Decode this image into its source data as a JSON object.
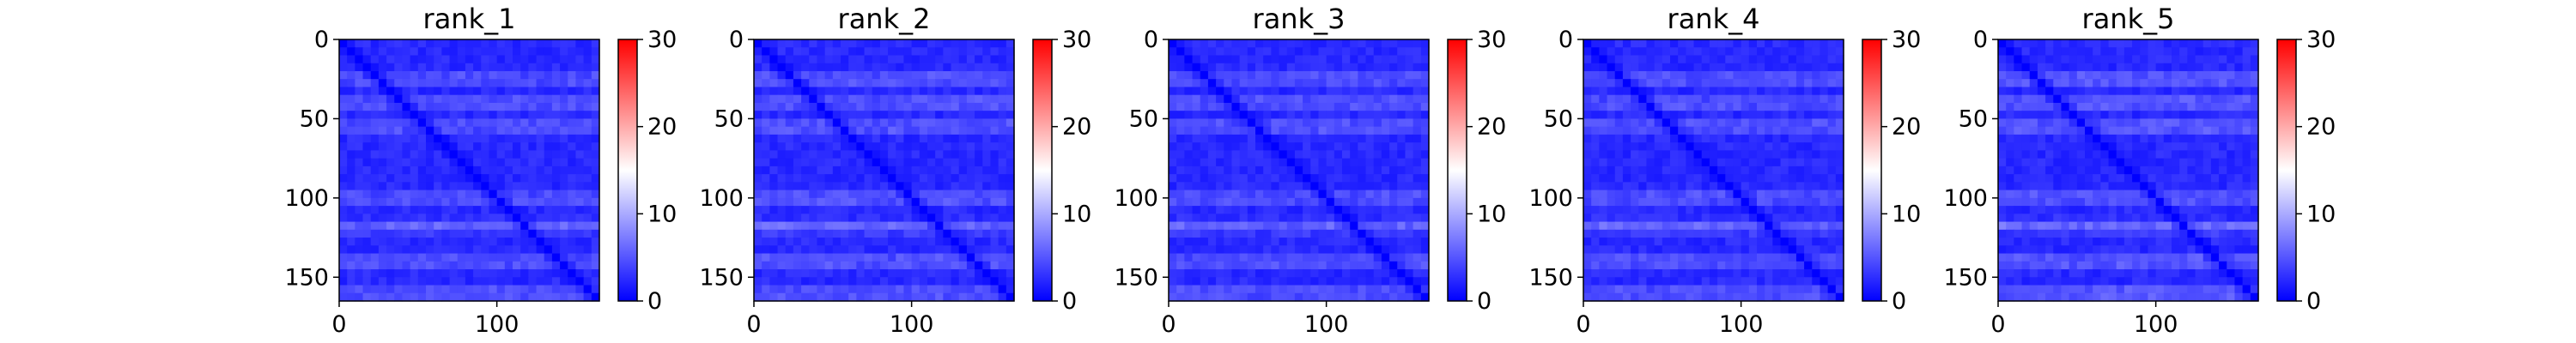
{
  "chart_data": [
    {
      "type": "heatmap",
      "title": "rank_1",
      "x_ticks": [
        0,
        100
      ],
      "y_ticks": [
        0,
        50,
        100,
        150
      ],
      "x_range": [
        0,
        165
      ],
      "y_range": [
        0,
        165
      ],
      "colorbar_ticks": [
        0,
        10,
        20,
        30
      ],
      "colorbar_range": [
        0,
        30
      ],
      "colormap": [
        "#0000ff",
        "#ffffff",
        "#ff0000"
      ],
      "bright_rows": [
        25,
        40,
        55,
        100,
        118,
        140,
        160
      ],
      "bright_row_intensity": 0.3
    },
    {
      "type": "heatmap",
      "title": "rank_2",
      "x_ticks": [
        0,
        100
      ],
      "y_ticks": [
        0,
        50,
        100,
        150
      ],
      "x_range": [
        0,
        165
      ],
      "y_range": [
        0,
        165
      ],
      "colorbar_ticks": [
        0,
        10,
        20,
        30
      ],
      "colorbar_range": [
        0,
        30
      ],
      "colormap": [
        "#0000ff",
        "#ffffff",
        "#ff0000"
      ],
      "bright_rows": [
        25,
        40,
        55,
        100,
        118,
        140,
        160
      ],
      "bright_row_intensity": 0.32
    },
    {
      "type": "heatmap",
      "title": "rank_3",
      "x_ticks": [
        0,
        100
      ],
      "y_ticks": [
        0,
        50,
        100,
        150
      ],
      "x_range": [
        0,
        165
      ],
      "y_range": [
        0,
        165
      ],
      "colorbar_ticks": [
        0,
        10,
        20,
        30
      ],
      "colorbar_range": [
        0,
        30
      ],
      "colormap": [
        "#0000ff",
        "#ffffff",
        "#ff0000"
      ],
      "bright_rows": [
        25,
        40,
        55,
        100,
        118,
        140,
        160
      ],
      "bright_row_intensity": 0.3
    },
    {
      "type": "heatmap",
      "title": "rank_4",
      "x_ticks": [
        0,
        100
      ],
      "y_ticks": [
        0,
        50,
        100,
        150
      ],
      "x_range": [
        0,
        165
      ],
      "y_range": [
        0,
        165
      ],
      "colorbar_ticks": [
        0,
        10,
        20,
        30
      ],
      "colorbar_range": [
        0,
        30
      ],
      "colormap": [
        "#0000ff",
        "#ffffff",
        "#ff0000"
      ],
      "bright_rows": [
        25,
        40,
        55,
        100,
        118,
        140,
        160
      ],
      "bright_row_intensity": 0.3
    },
    {
      "type": "heatmap",
      "title": "rank_5",
      "x_ticks": [
        0,
        100
      ],
      "y_ticks": [
        0,
        50,
        100,
        150
      ],
      "x_range": [
        0,
        165
      ],
      "y_range": [
        0,
        165
      ],
      "colorbar_ticks": [
        0,
        10,
        20,
        30
      ],
      "colorbar_range": [
        0,
        30
      ],
      "colormap": [
        "#0000ff",
        "#ffffff",
        "#ff0000"
      ],
      "bright_rows": [
        25,
        40,
        55,
        100,
        118,
        140,
        160
      ],
      "bright_row_intensity": 0.36
    }
  ]
}
